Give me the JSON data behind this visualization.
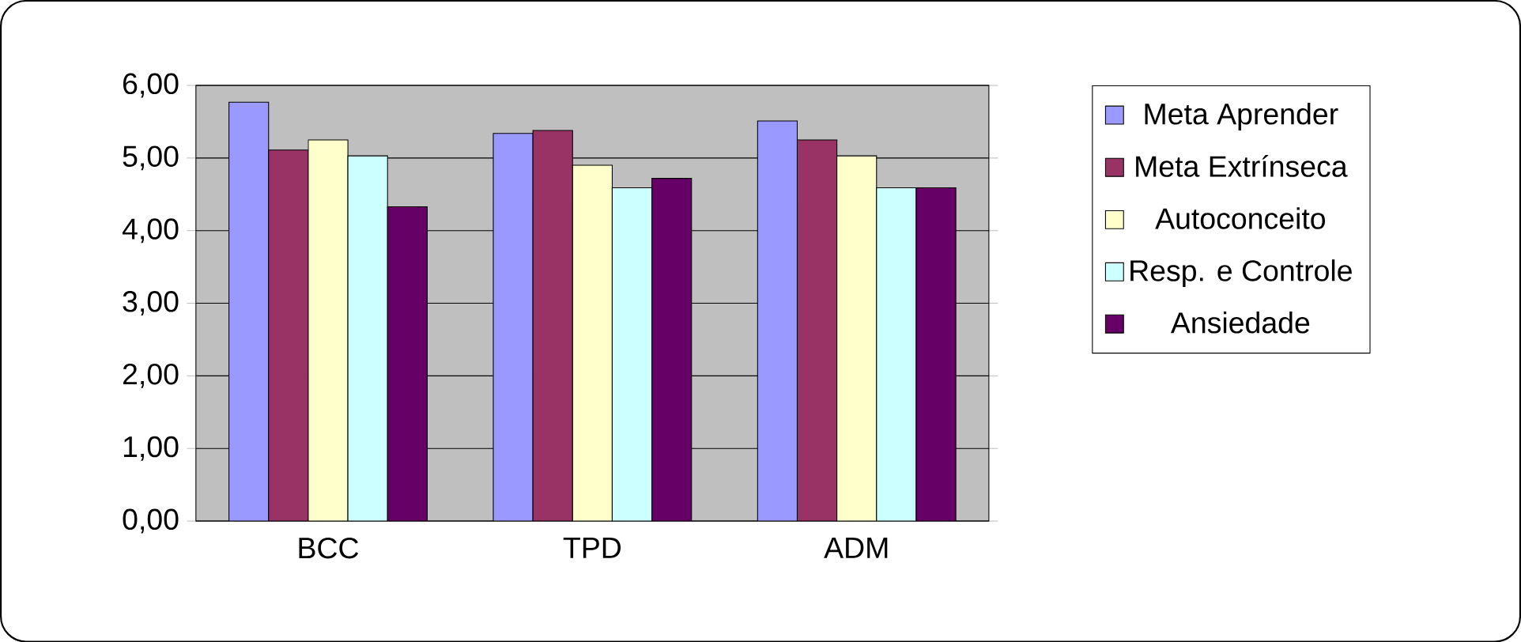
{
  "chart_data": {
    "type": "bar",
    "categories": [
      "BCC",
      "TPD",
      "ADM"
    ],
    "series": [
      {
        "name": "Meta Aprender",
        "color": "#9999ff",
        "values": [
          5.77,
          5.34,
          5.51
        ]
      },
      {
        "name": "Meta Extrínseca",
        "color": "#993366",
        "values": [
          5.11,
          5.38,
          5.25
        ]
      },
      {
        "name": "Autoconceito",
        "color": "#ffffcc",
        "values": [
          5.25,
          4.9,
          5.03
        ]
      },
      {
        "name": "Resp. e Controle",
        "color": "#ccffff",
        "values": [
          5.03,
          4.59,
          4.59
        ]
      },
      {
        "name": "Ansiedade",
        "color": "#660066",
        "values": [
          4.33,
          4.72,
          4.59
        ]
      }
    ],
    "ylim": [
      0,
      6
    ],
    "yticks": [
      {
        "value": 0,
        "label": "0,00"
      },
      {
        "value": 1,
        "label": "1,00"
      },
      {
        "value": 2,
        "label": "2,00"
      },
      {
        "value": 3,
        "label": "3,00"
      },
      {
        "value": 4,
        "label": "4,00"
      },
      {
        "value": 5,
        "label": "5,00"
      },
      {
        "value": 6,
        "label": "6,00"
      }
    ],
    "grid": "y",
    "legend": "right"
  }
}
